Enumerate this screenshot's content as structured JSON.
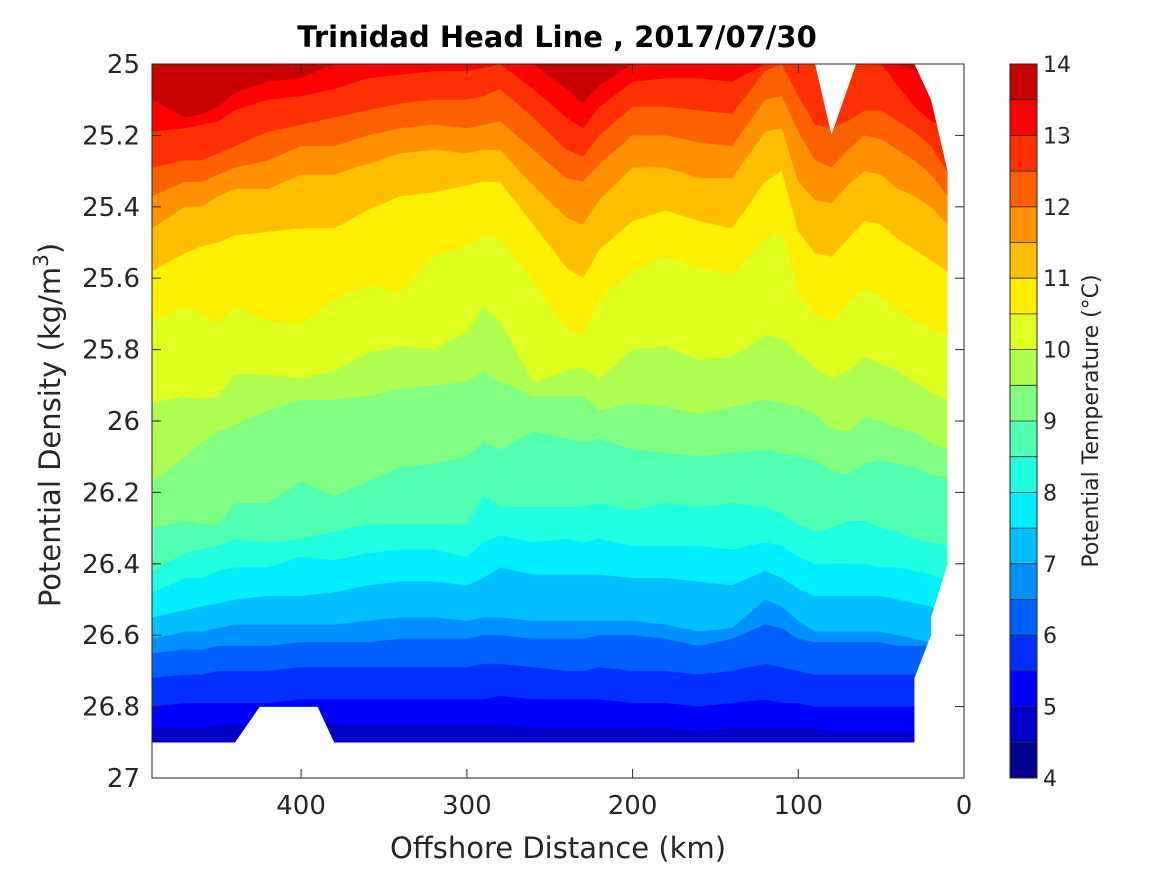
{
  "chart_data": {
    "type": "contour",
    "title": "Trinidad Head Line , 2017/07/30",
    "xlabel": "Offshore Distance (km)",
    "ylabel": "Potential Density (kg/m",
    "ylabel_superscript": "3",
    "ylabel_suffix": ")",
    "xlim": [
      490,
      0
    ],
    "ylim": [
      25,
      27
    ],
    "x_reversed": true,
    "y_reversed": true,
    "x_ticks": [
      400,
      300,
      200,
      100,
      0
    ],
    "y_ticks": [
      25,
      25.2,
      25.4,
      25.6,
      25.8,
      26,
      26.2,
      26.4,
      26.6,
      26.8,
      27
    ],
    "x_tick_labels": [
      "400",
      "300",
      "200",
      "100",
      "0"
    ],
    "y_tick_labels": [
      "25",
      "25.2",
      "25.4",
      "25.6",
      "25.8",
      "26",
      "26.2",
      "26.4",
      "26.6",
      "26.8",
      "27"
    ],
    "colorbar": {
      "label": "Potential Temperature (°C)",
      "min": 4,
      "max": 14,
      "ticks": [
        4,
        5,
        6,
        7,
        8,
        9,
        10,
        11,
        12,
        13,
        14
      ],
      "tick_labels": [
        "4",
        "5",
        "6",
        "7",
        "8",
        "9",
        "10",
        "11",
        "12",
        "13",
        "14"
      ],
      "levels": [
        4,
        4.5,
        5,
        5.5,
        6,
        6.5,
        7,
        7.5,
        8,
        8.5,
        9,
        9.5,
        10,
        10.5,
        11,
        11.5,
        12,
        12.5,
        13,
        13.5,
        14
      ],
      "colors": [
        "#00008f",
        "#0000c8",
        "#0000ff",
        "#0030ff",
        "#0060ff",
        "#0090ff",
        "#00bfff",
        "#00efff",
        "#20ffdf",
        "#50ffaf",
        "#80ff80",
        "#afff50",
        "#dfff20",
        "#ffef00",
        "#ffbf00",
        "#ff9000",
        "#ff6000",
        "#ff3000",
        "#ff0000",
        "#c80000"
      ]
    },
    "x": [
      490,
      470,
      460,
      450,
      440,
      420,
      400,
      380,
      360,
      340,
      320,
      300,
      290,
      280,
      260,
      240,
      230,
      220,
      200,
      180,
      160,
      140,
      120,
      110,
      100,
      90,
      80,
      70,
      60,
      50,
      40,
      30,
      20,
      10
    ],
    "isotherms": [
      {
        "temperature": 13.5,
        "y": [
          25.06,
          25.11,
          25.1,
          25.08,
          25.06,
          25.04,
          25.0,
          25.0,
          25.0,
          25.0,
          25.0,
          25.0,
          25.0,
          25.0,
          25.0,
          25.0,
          25.04,
          25.0,
          25.0,
          25.0,
          25.0,
          25.0,
          25.0,
          25.0,
          25.0,
          25.0,
          25.0,
          25.0,
          25.0,
          25.0,
          25.0,
          25.0,
          25.0,
          25.0
        ]
      },
      {
        "temperature": 13,
        "y": [
          25.1,
          25.15,
          25.14,
          25.12,
          25.08,
          25.05,
          25.04,
          25.0,
          25.0,
          25.0,
          25.0,
          25.0,
          25.0,
          25.0,
          25.0,
          25.07,
          25.11,
          25.06,
          25.0,
          25.0,
          25.0,
          25.0,
          25.0,
          25.0,
          25.0,
          25.0,
          25.0,
          25.0,
          25.0,
          25.0,
          25.0,
          25.02,
          25.02,
          25.02
        ]
      },
      {
        "temperature": 12.5,
        "y": [
          25.19,
          25.18,
          25.17,
          25.16,
          25.13,
          25.1,
          25.09,
          25.07,
          25.04,
          25.03,
          25.02,
          25.02,
          25.01,
          25.0,
          25.07,
          25.15,
          25.18,
          25.12,
          25.05,
          25.04,
          25.04,
          25.05,
          25.0,
          25.0,
          25.0,
          25.0,
          25.0,
          25.0,
          25.0,
          25.0,
          25.06,
          25.12,
          25.16,
          25.18
        ]
      },
      {
        "temperature": 12,
        "y": [
          25.29,
          25.27,
          25.27,
          25.25,
          25.23,
          25.19,
          25.17,
          25.15,
          25.13,
          25.11,
          25.1,
          25.1,
          25.09,
          25.07,
          25.15,
          25.24,
          25.26,
          25.2,
          25.12,
          25.12,
          25.13,
          25.14,
          25.02,
          25.0,
          25.09,
          25.17,
          25.18,
          25.16,
          25.13,
          25.13,
          25.16,
          25.19,
          25.23,
          25.3
        ]
      },
      {
        "temperature": 11.5,
        "y": [
          25.37,
          25.33,
          25.33,
          25.31,
          25.29,
          25.27,
          25.23,
          25.23,
          25.2,
          25.18,
          25.17,
          25.18,
          25.17,
          25.16,
          25.24,
          25.32,
          25.33,
          25.28,
          25.2,
          25.2,
          25.22,
          25.23,
          25.1,
          25.09,
          25.19,
          25.27,
          25.29,
          25.24,
          25.2,
          25.21,
          25.24,
          25.27,
          25.31,
          25.37
        ]
      },
      {
        "temperature": 11,
        "y": [
          25.46,
          25.4,
          25.4,
          25.37,
          25.35,
          25.35,
          25.31,
          25.31,
          25.28,
          25.25,
          25.24,
          25.25,
          25.24,
          25.24,
          25.34,
          25.43,
          25.45,
          25.38,
          25.29,
          25.29,
          25.32,
          25.32,
          25.19,
          25.18,
          25.33,
          25.38,
          25.39,
          25.34,
          25.3,
          25.31,
          25.35,
          25.37,
          25.4,
          25.45
        ]
      },
      {
        "temperature": 10.5,
        "y": [
          25.58,
          25.53,
          25.51,
          25.5,
          25.48,
          25.47,
          25.46,
          25.46,
          25.41,
          25.37,
          25.36,
          25.34,
          25.33,
          25.33,
          25.45,
          25.57,
          25.6,
          25.52,
          25.44,
          25.41,
          25.44,
          25.46,
          25.33,
          25.3,
          25.47,
          25.53,
          25.54,
          25.49,
          25.44,
          25.45,
          25.49,
          25.52,
          25.55,
          25.58
        ]
      },
      {
        "temperature": 10,
        "y": [
          25.72,
          25.68,
          25.7,
          25.73,
          25.68,
          25.72,
          25.73,
          25.66,
          25.62,
          25.64,
          25.54,
          25.51,
          25.48,
          25.49,
          25.61,
          25.74,
          25.76,
          25.66,
          25.58,
          25.54,
          25.57,
          25.59,
          25.49,
          25.47,
          25.64,
          25.7,
          25.72,
          25.67,
          25.63,
          25.65,
          25.69,
          25.72,
          25.74,
          25.76
        ]
      },
      {
        "temperature": 9.5,
        "y": [
          25.95,
          25.93,
          25.94,
          25.93,
          25.87,
          25.87,
          25.88,
          25.86,
          25.81,
          25.79,
          25.8,
          25.75,
          25.68,
          25.72,
          25.89,
          25.86,
          25.85,
          25.88,
          25.8,
          25.79,
          25.83,
          25.82,
          25.76,
          25.77,
          25.81,
          25.85,
          25.88,
          25.86,
          25.82,
          25.84,
          25.86,
          25.89,
          25.92,
          25.94
        ]
      },
      {
        "temperature": 9,
        "y": [
          26.17,
          26.1,
          26.06,
          26.03,
          26.01,
          25.97,
          25.94,
          25.94,
          25.93,
          25.91,
          25.9,
          25.89,
          25.86,
          25.89,
          25.93,
          25.93,
          25.93,
          25.97,
          25.95,
          25.96,
          25.98,
          25.96,
          25.94,
          25.95,
          25.96,
          25.98,
          26.02,
          26.03,
          25.99,
          26.0,
          26.02,
          26.03,
          26.06,
          26.08
        ]
      },
      {
        "temperature": 8.5,
        "y": [
          26.3,
          26.28,
          26.29,
          26.29,
          26.23,
          26.23,
          26.17,
          26.21,
          26.17,
          26.13,
          26.12,
          26.1,
          26.06,
          26.08,
          26.03,
          26.05,
          26.06,
          26.05,
          26.08,
          26.09,
          26.1,
          26.09,
          26.08,
          26.09,
          26.1,
          26.11,
          26.14,
          26.15,
          26.12,
          26.11,
          26.12,
          26.13,
          26.15,
          26.16
        ]
      },
      {
        "temperature": 8,
        "y": [
          26.42,
          26.37,
          26.36,
          26.35,
          26.33,
          26.34,
          26.33,
          26.31,
          26.29,
          26.29,
          26.29,
          26.29,
          26.21,
          26.24,
          26.24,
          26.24,
          26.24,
          26.23,
          26.25,
          26.23,
          26.24,
          26.23,
          26.24,
          26.26,
          26.29,
          26.31,
          26.3,
          26.28,
          26.28,
          26.3,
          26.31,
          26.33,
          26.34,
          26.35
        ]
      },
      {
        "temperature": 7.5,
        "y": [
          26.48,
          26.44,
          26.44,
          26.42,
          26.41,
          26.41,
          26.38,
          26.39,
          26.37,
          26.36,
          26.36,
          26.38,
          26.34,
          26.32,
          26.34,
          26.33,
          26.34,
          26.33,
          26.35,
          26.35,
          26.35,
          26.36,
          26.34,
          26.35,
          26.38,
          26.4,
          26.4,
          26.4,
          26.4,
          26.41,
          26.41,
          26.42,
          26.43,
          26.45
        ]
      },
      {
        "temperature": 7,
        "y": [
          26.55,
          26.53,
          26.52,
          26.51,
          26.5,
          26.49,
          26.49,
          26.48,
          26.46,
          26.45,
          26.45,
          26.46,
          26.44,
          26.41,
          26.43,
          26.43,
          26.43,
          26.43,
          26.44,
          26.44,
          26.45,
          26.46,
          26.42,
          26.44,
          26.47,
          26.49,
          26.49,
          26.49,
          26.49,
          26.49,
          26.5,
          26.51,
          26.52,
          26.55
        ]
      },
      {
        "temperature": 6.5,
        "y": [
          26.61,
          26.59,
          26.59,
          26.58,
          26.57,
          26.57,
          26.57,
          26.57,
          26.56,
          26.55,
          26.55,
          26.56,
          26.55,
          26.55,
          26.56,
          26.56,
          26.56,
          26.56,
          26.56,
          26.57,
          26.59,
          26.58,
          26.5,
          26.52,
          26.56,
          26.59,
          26.59,
          26.59,
          26.59,
          26.59,
          26.6,
          26.61,
          26.62,
          26.62
        ]
      },
      {
        "temperature": 6,
        "y": [
          26.65,
          26.64,
          26.64,
          26.63,
          26.63,
          26.63,
          26.62,
          26.62,
          26.62,
          26.61,
          26.61,
          26.61,
          26.6,
          26.6,
          26.61,
          26.61,
          26.61,
          26.6,
          26.6,
          26.61,
          26.63,
          26.61,
          26.57,
          26.58,
          26.61,
          26.62,
          26.62,
          26.62,
          26.62,
          26.62,
          26.63,
          26.63,
          26.63,
          26.63
        ]
      },
      {
        "temperature": 5.5,
        "y": [
          26.72,
          26.71,
          26.71,
          26.7,
          26.7,
          26.7,
          26.69,
          26.69,
          26.69,
          26.69,
          26.69,
          26.69,
          26.68,
          26.68,
          26.69,
          26.7,
          26.7,
          26.69,
          26.7,
          26.7,
          26.71,
          26.7,
          26.68,
          26.69,
          26.7,
          26.71,
          26.71,
          26.71,
          26.71,
          26.71,
          26.71,
          26.71,
          26.71,
          26.71
        ]
      },
      {
        "temperature": 5,
        "y": [
          26.8,
          26.79,
          26.79,
          26.79,
          26.79,
          26.79,
          26.78,
          26.78,
          26.78,
          26.78,
          26.78,
          26.78,
          26.78,
          26.77,
          26.78,
          26.78,
          26.78,
          26.78,
          26.79,
          26.79,
          26.8,
          26.79,
          26.78,
          26.79,
          26.79,
          26.8,
          26.8,
          26.8,
          26.8,
          26.8,
          26.8,
          26.8,
          26.8,
          26.8
        ]
      },
      {
        "temperature": 4.5,
        "y": [
          26.86,
          26.86,
          26.86,
          26.85,
          26.85,
          26.85,
          26.85,
          26.85,
          26.85,
          26.85,
          26.85,
          26.85,
          26.85,
          26.85,
          26.86,
          26.86,
          26.86,
          26.86,
          26.86,
          26.86,
          26.87,
          26.86,
          26.86,
          26.86,
          26.86,
          26.86,
          26.87,
          26.87,
          26.87,
          26.87,
          26.87,
          26.87,
          26.87,
          26.87
        ]
      }
    ],
    "data_mask": {
      "top_gap": [
        [
          90,
          25.0
        ],
        [
          80,
          25.2
        ],
        [
          65,
          25.0
        ]
      ],
      "right_edge": [
        [
          30,
          25.0
        ],
        [
          20,
          25.1
        ],
        [
          10,
          25.3
        ],
        [
          10,
          26.4
        ],
        [
          20,
          26.55
        ],
        [
          20,
          26.6
        ],
        [
          30,
          26.72
        ],
        [
          30,
          26.9
        ]
      ],
      "bottom_gap": [
        [
          440,
          26.9
        ],
        [
          425,
          26.8
        ],
        [
          390,
          26.8
        ],
        [
          380,
          26.9
        ]
      ],
      "bottom": 26.9
    }
  }
}
